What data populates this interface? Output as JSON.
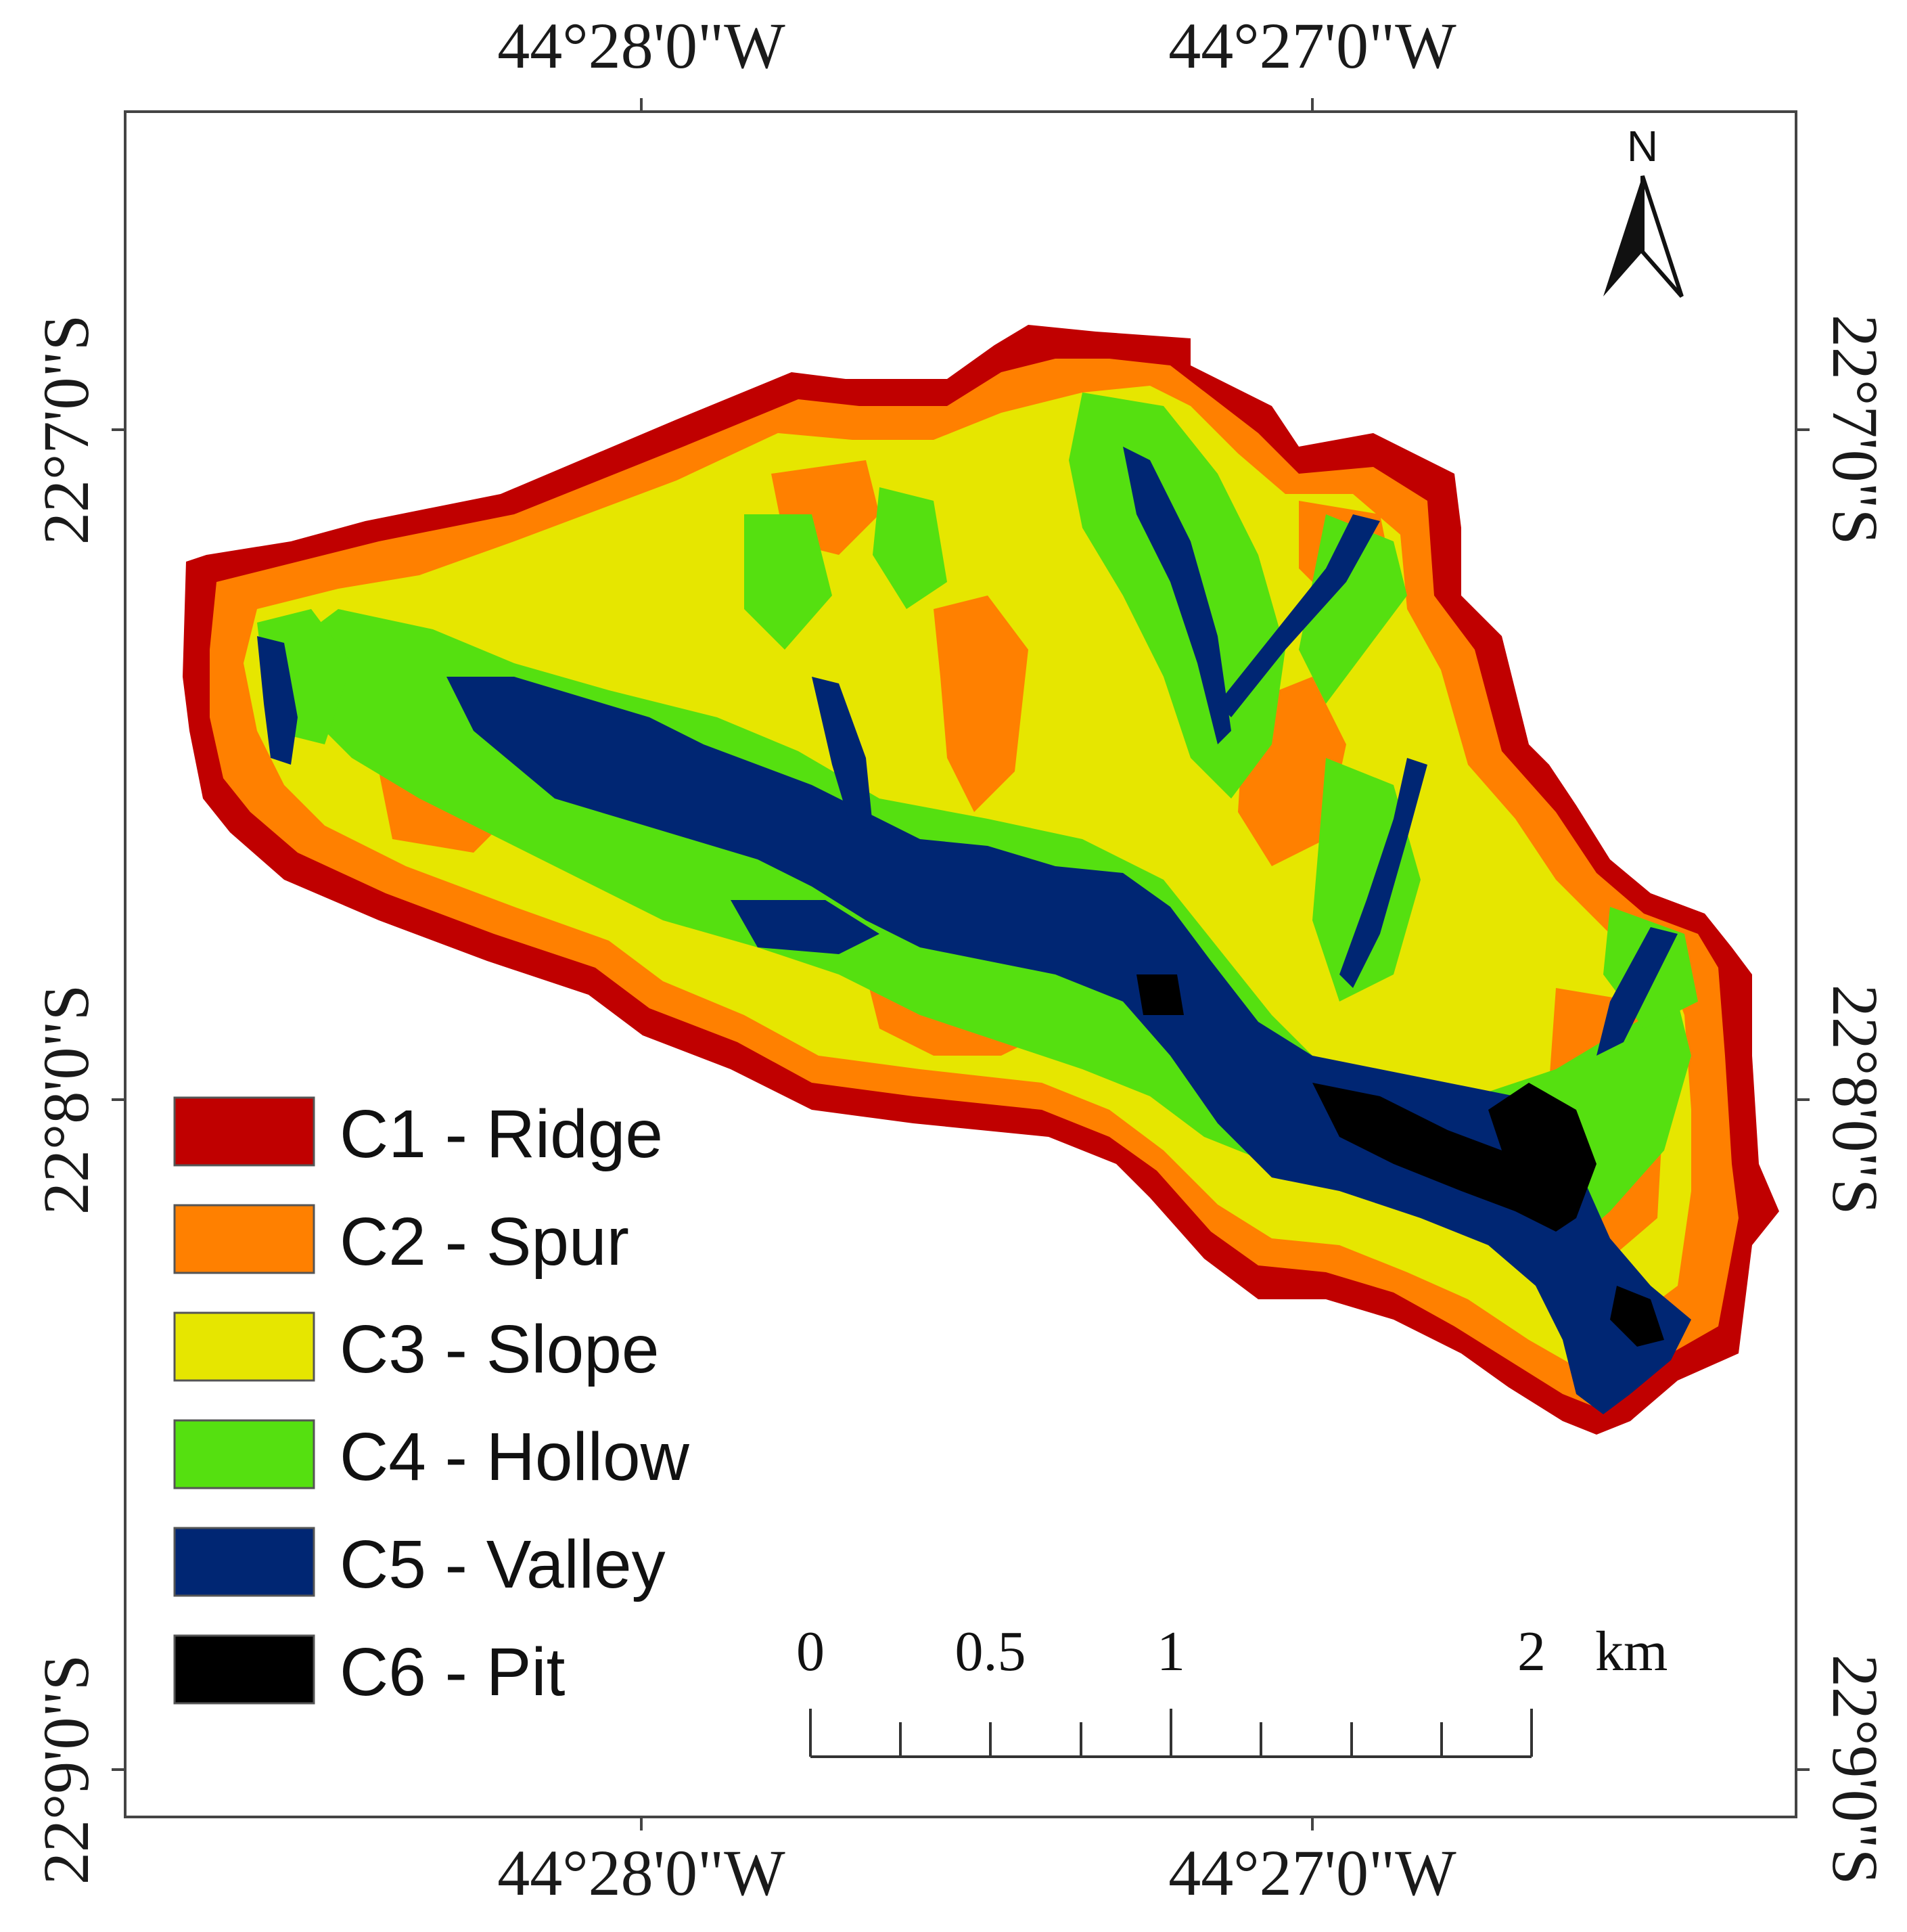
{
  "map": {
    "coords": {
      "lon_left": "44°28'0\"W",
      "lon_right": "44°27'0\"W",
      "lat_1": "22°7'0\"S",
      "lat_2": "22°8'0\"S",
      "lat_3": "22°9'0\"S"
    },
    "legend": [
      {
        "label": "C1 - Ridge",
        "color": "#c00000"
      },
      {
        "label": "C2 - Spur",
        "color": "#ff8000"
      },
      {
        "label": "C3 - Slope",
        "color": "#e6e600"
      },
      {
        "label": "C4 - Hollow",
        "color": "#55e010"
      },
      {
        "label": "C5 - Valley",
        "color": "#002673"
      },
      {
        "label": "C6 - Pit",
        "color": "#000000"
      }
    ],
    "scale_bar": {
      "labels": [
        "0",
        "0.5",
        "1",
        "2"
      ],
      "unit": "km"
    },
    "north_arrow": {
      "label": "N",
      "icon": "north-arrow-icon"
    }
  }
}
